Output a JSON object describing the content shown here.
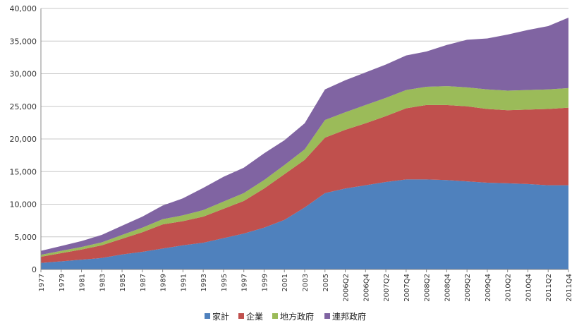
{
  "chart_data": {
    "type": "area",
    "stacked": true,
    "grid": true,
    "legend_position": "bottom",
    "ylim": [
      0,
      40000
    ],
    "y_ticks": [
      "0",
      "5,000",
      "10,000",
      "15,000",
      "20,000",
      "25,000",
      "30,000",
      "35,000",
      "40,000"
    ],
    "y_tick_values": [
      0,
      5000,
      10000,
      15000,
      20000,
      25000,
      30000,
      35000,
      40000
    ],
    "categories": [
      "1977",
      "1979",
      "1981",
      "1983",
      "1985",
      "1987",
      "1989",
      "1991",
      "1993",
      "1995",
      "1997",
      "1999",
      "2001",
      "2003",
      "2005",
      "2006Q2",
      "2006Q4",
      "2007Q2",
      "2007Q4",
      "2008Q2",
      "2008Q4",
      "2009Q2",
      "2009Q4",
      "2010Q2",
      "2010Q4",
      "2011Q2",
      "2011Q4"
    ],
    "x_ticks": [
      "1977",
      "1979",
      "1981",
      "1983",
      "1985",
      "1987",
      "1989",
      "1991",
      "1993",
      "1995",
      "1997",
      "1999",
      "2001",
      "2003",
      "2005",
      "2006Q2",
      "2006Q4",
      "2007Q2",
      "2007Q4",
      "2008Q2",
      "2008Q4",
      "2009Q2",
      "2009Q4",
      "2010Q2",
      "2010Q4",
      "2011Q2",
      "2011Q4"
    ],
    "series": [
      {
        "name": "家計",
        "color": "#4f81bd",
        "values": [
          1000,
          1250,
          1500,
          1750,
          2300,
          2700,
          3200,
          3700,
          4100,
          4800,
          5500,
          6400,
          7600,
          9500,
          11700,
          12400,
          12900,
          13400,
          13800,
          13800,
          13700,
          13500,
          13300,
          13200,
          13100,
          12900,
          12900
        ]
      },
      {
        "name": "企業",
        "color": "#c0504d",
        "values": [
          950,
          1250,
          1550,
          1950,
          2400,
          3000,
          3700,
          3700,
          4000,
          4500,
          5000,
          6000,
          7000,
          7300,
          8500,
          9000,
          9500,
          10100,
          10900,
          11400,
          11500,
          11500,
          11300,
          11200,
          11400,
          11700,
          11900
        ]
      },
      {
        "name": "地方政府",
        "color": "#9bbb59",
        "values": [
          300,
          350,
          400,
          450,
          600,
          700,
          800,
          900,
          1000,
          1100,
          1200,
          1300,
          1400,
          1600,
          2700,
          2700,
          2800,
          2800,
          2800,
          2800,
          2900,
          2900,
          3000,
          3000,
          3000,
          3000,
          3000
        ]
      },
      {
        "name": "連邦政府",
        "color": "#8064a2",
        "values": [
          600,
          750,
          900,
          1150,
          1400,
          1700,
          2100,
          2600,
          3400,
          3800,
          3900,
          4100,
          3800,
          4000,
          4700,
          4900,
          5000,
          5100,
          5300,
          5400,
          6300,
          7300,
          7800,
          8600,
          9200,
          9700,
          10800
        ]
      }
    ]
  }
}
